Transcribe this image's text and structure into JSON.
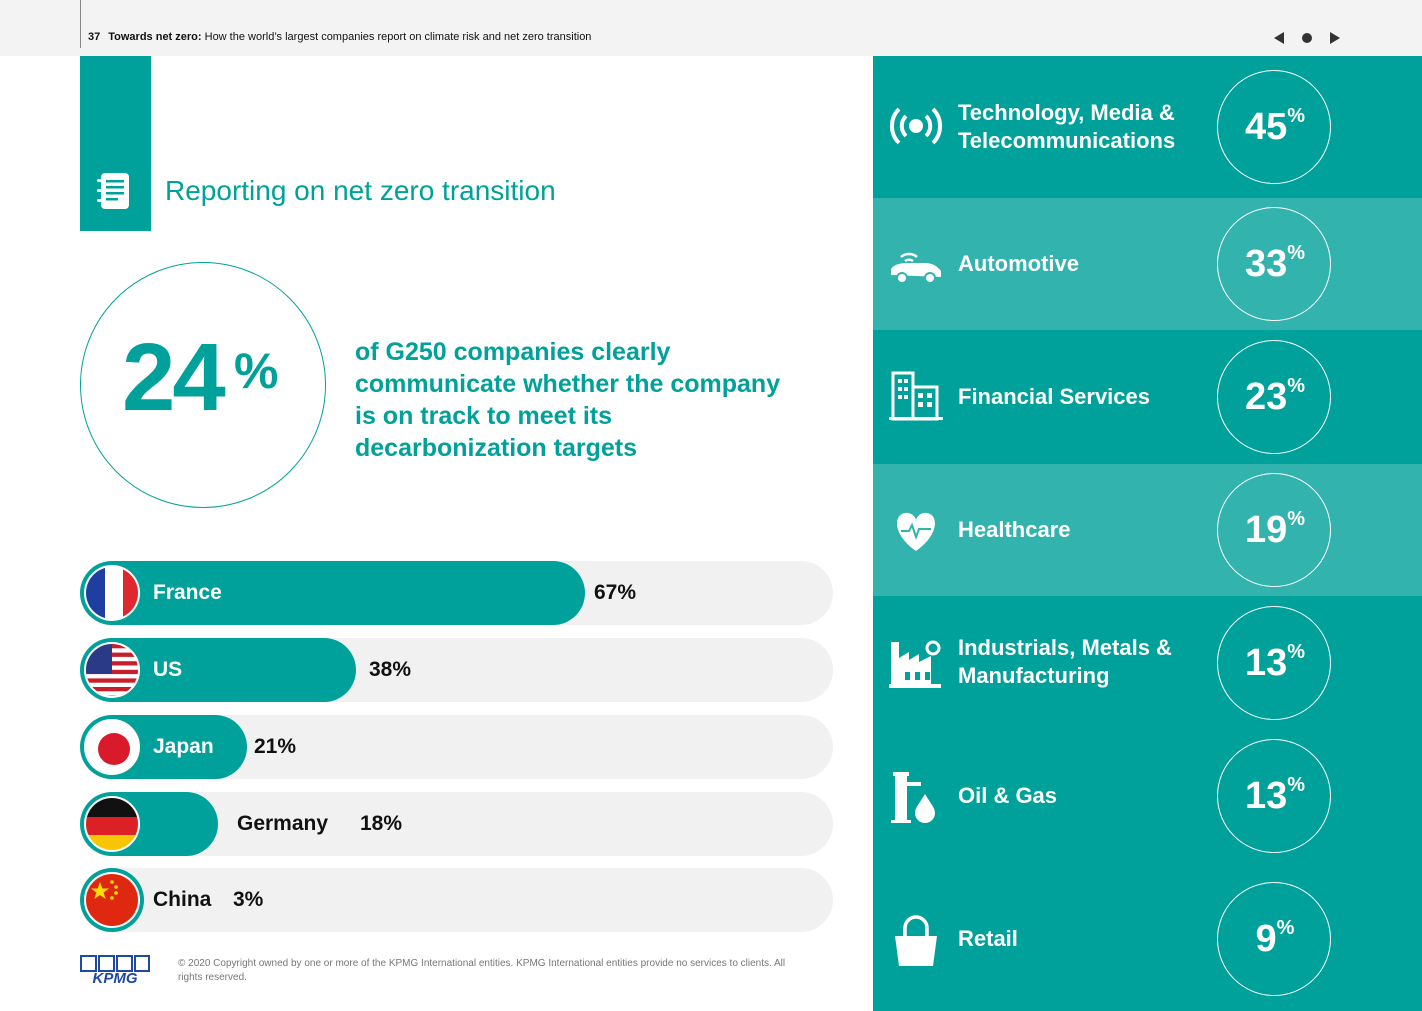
{
  "header": {
    "page_number": "37",
    "title_bold": "Towards net zero:",
    "title_rest": " How the world’s largest companies report on climate risk and net zero transition"
  },
  "section": {
    "title": "Reporting on net zero transition",
    "icon": "document-icon"
  },
  "headline": {
    "number": "24",
    "unit": "%",
    "text": "of G250 companies clearly communicate whether the company is on track to meet its decarbonization targets"
  },
  "countries": [
    {
      "name": "France",
      "value_label": "67%",
      "value": 67
    },
    {
      "name": "US",
      "value_label": "38%",
      "value": 38
    },
    {
      "name": "Japan",
      "value_label": "21%",
      "value": 21
    },
    {
      "name": "Germany",
      "value_label": "18%",
      "value": 18
    },
    {
      "name": "China",
      "value_label": "3%",
      "value": 3
    }
  ],
  "sectors": [
    {
      "name": "Technology, Media & Telecommunications",
      "value": "45",
      "unit": "%",
      "icon": "broadcast-icon"
    },
    {
      "name": "Automotive",
      "value": "33",
      "unit": "%",
      "icon": "connected-car-icon"
    },
    {
      "name": "Financial Services",
      "value": "23",
      "unit": "%",
      "icon": "office-building-icon"
    },
    {
      "name": "Healthcare",
      "value": "19",
      "unit": "%",
      "icon": "heart-pulse-icon"
    },
    {
      "name": "Industrials, Metals & Manufacturing",
      "value": "13",
      "unit": "%",
      "icon": "factory-icon"
    },
    {
      "name": "Oil & Gas",
      "value": "13",
      "unit": "%",
      "icon": "oil-drop-icon"
    },
    {
      "name": "Retail",
      "value": "9",
      "unit": "%",
      "icon": "shopping-bag-icon"
    }
  ],
  "colors": {
    "teal": "#00a19a",
    "teal_light": "#33b3ad",
    "track": "#f1f1f1"
  },
  "footer": {
    "logo": "KPMG",
    "copyright": "© 2020 Copyright owned by one or more of the KPMG International entities. KPMG International entities provide no services to clients.  All rights reserved."
  }
}
